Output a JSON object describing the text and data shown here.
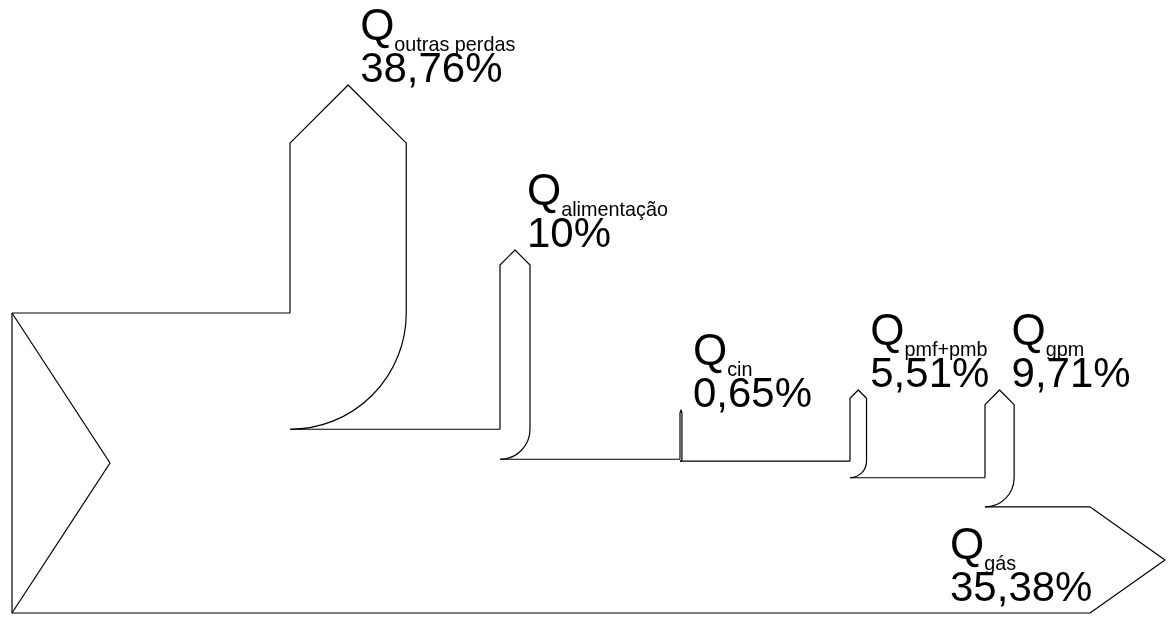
{
  "chart_data": {
    "type": "other",
    "categories": [
      "Q$_{outras perdas}$",
      "Q$_{alimentação}$",
      "Q$_{cin}$",
      "Q$_{pmf+pmb}$",
      "Q$_{gpm}$",
      "Q$_{gás}$"
    ],
    "values": [
      38.76,
      10,
      0.65,
      5.51,
      9.71,
      35.38
    ],
    "value_labels": [
      "38,76%",
      "10%",
      "0,65%",
      "5,51%",
      "9,71%",
      "35,38%"
    ]
  }
}
